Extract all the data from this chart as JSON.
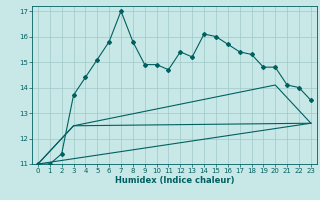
{
  "title": "",
  "xlabel": "Humidex (Indice chaleur)",
  "background_color": "#c8e8e8",
  "grid_color": "#a0c8c8",
  "line_color": "#006060",
  "xlim": [
    -0.5,
    23.5
  ],
  "ylim": [
    11,
    17.2
  ],
  "yticks": [
    11,
    12,
    13,
    14,
    15,
    16,
    17
  ],
  "xticks": [
    0,
    1,
    2,
    3,
    4,
    5,
    6,
    7,
    8,
    9,
    10,
    11,
    12,
    13,
    14,
    15,
    16,
    17,
    18,
    19,
    20,
    21,
    22,
    23
  ],
  "series1_x": [
    0,
    1,
    2,
    3,
    4,
    5,
    6,
    7,
    8,
    9,
    10,
    11,
    12,
    13,
    14,
    15,
    16,
    17,
    18,
    19,
    20,
    21,
    22,
    23
  ],
  "series1_y": [
    11.0,
    11.0,
    11.4,
    13.7,
    14.4,
    15.1,
    15.8,
    17.0,
    15.8,
    14.9,
    14.9,
    14.7,
    15.4,
    15.2,
    16.1,
    16.0,
    15.7,
    15.4,
    15.3,
    14.8,
    14.8,
    14.1,
    14.0,
    13.5
  ],
  "series2_x": [
    0,
    23
  ],
  "series2_y": [
    11.0,
    12.6
  ],
  "series3_x": [
    0,
    3,
    23
  ],
  "series3_y": [
    11.0,
    12.5,
    12.6
  ],
  "series4_x": [
    0,
    3,
    20,
    23
  ],
  "series4_y": [
    11.0,
    12.5,
    14.1,
    12.6
  ]
}
